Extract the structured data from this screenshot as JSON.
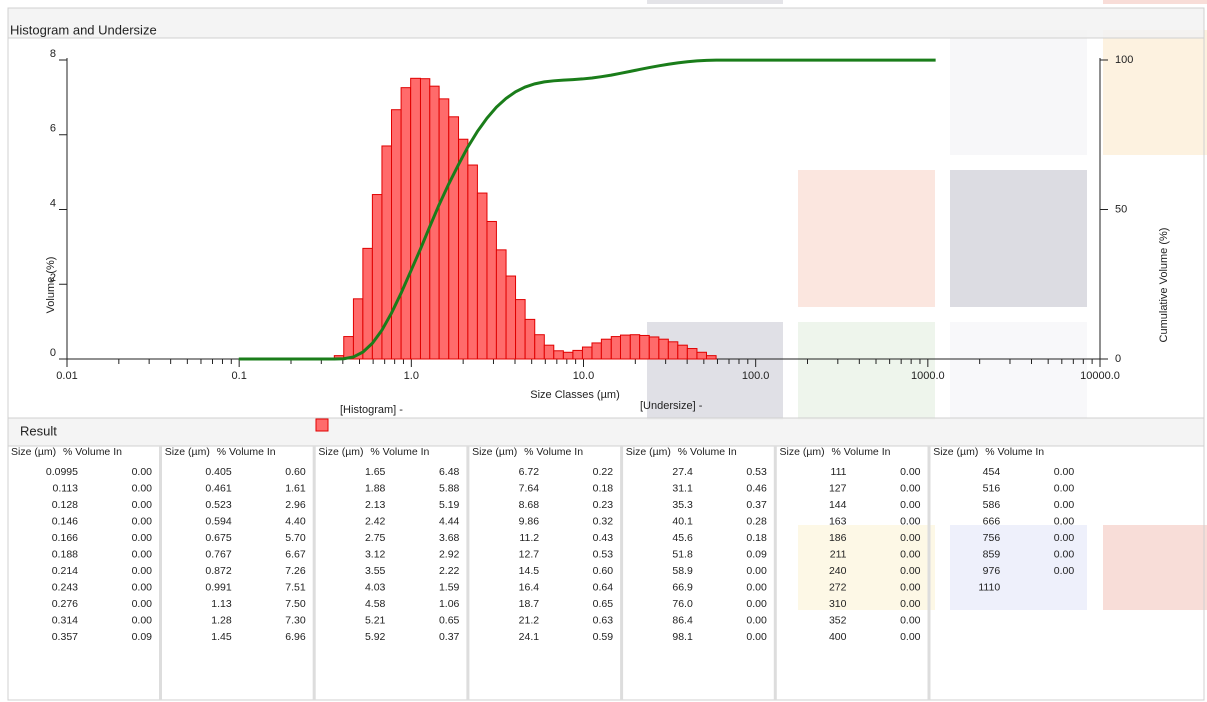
{
  "header": {
    "title": "Histogram and Undersize"
  },
  "chart_data": {
    "type": "histogram",
    "xscale": "log",
    "xlabel": "Size Classes (µm)",
    "ylabel": "Volume (%)",
    "y2label": "Cumulative Volume (%)",
    "xlim": [
      0.01,
      10000
    ],
    "xticks": [
      {
        "value": 0.01,
        "label": "0.01"
      },
      {
        "value": 0.1,
        "label": "0.1"
      },
      {
        "value": 1,
        "label": "1.0"
      },
      {
        "value": 10,
        "label": "10.0"
      },
      {
        "value": 100,
        "label": "100.0"
      },
      {
        "value": 1000,
        "label": "1000.0"
      },
      {
        "value": 10000,
        "label": "10000.0"
      }
    ],
    "ylim": [
      0,
      8
    ],
    "yticks": [
      0,
      2,
      4,
      6,
      8
    ],
    "y2lim": [
      0,
      100
    ],
    "y2ticks": [
      0,
      50,
      100
    ],
    "bins": [
      0.0995,
      0.113,
      0.128,
      0.146,
      0.166,
      0.188,
      0.214,
      0.243,
      0.276,
      0.314,
      0.357,
      0.405,
      0.461,
      0.523,
      0.594,
      0.675,
      0.767,
      0.872,
      0.991,
      1.13,
      1.28,
      1.45,
      1.65,
      1.88,
      2.13,
      2.42,
      2.75,
      3.12,
      3.55,
      4.03,
      4.58,
      5.21,
      5.92,
      6.72,
      7.64,
      8.68,
      9.86,
      11.2,
      12.7,
      14.5,
      16.4,
      18.7,
      21.2,
      24.1,
      27.4,
      31.1,
      35.3,
      40.1,
      45.6,
      51.8,
      58.9,
      66.9,
      76.0,
      86.4,
      98.1,
      111,
      127,
      144,
      163,
      186,
      211,
      240,
      272,
      310,
      352,
      400,
      454,
      516,
      586,
      666,
      756,
      859,
      976,
      1110
    ],
    "series": [
      {
        "name": "[Histogram] -",
        "color": "#ff6b6b",
        "values": [
          0,
          0,
          0,
          0,
          0,
          0,
          0,
          0,
          0,
          0,
          0.09,
          0.6,
          1.61,
          2.96,
          4.4,
          5.7,
          6.67,
          7.26,
          7.51,
          7.5,
          7.3,
          6.96,
          6.48,
          5.88,
          5.19,
          4.44,
          3.68,
          2.92,
          2.22,
          1.59,
          1.06,
          0.65,
          0.37,
          0.22,
          0.18,
          0.23,
          0.32,
          0.43,
          0.53,
          0.6,
          0.64,
          0.65,
          0.63,
          0.59,
          0.53,
          0.46,
          0.37,
          0.28,
          0.18,
          0.09,
          0,
          0,
          0,
          0,
          0,
          0,
          0,
          0,
          0,
          0,
          0,
          0,
          0,
          0,
          0,
          0,
          0,
          0,
          0,
          0,
          0,
          0,
          0
        ]
      },
      {
        "name": "[Undersize] -",
        "color": "#1a7d1a",
        "axis": "y2",
        "values": [
          0,
          0,
          0,
          0,
          0,
          0,
          0,
          0,
          0,
          0,
          0,
          0.09,
          0.69,
          2.3,
          5.26,
          9.66,
          15.36,
          22.03,
          29.29,
          36.8,
          44.3,
          51.6,
          58.56,
          65.04,
          70.92,
          76.11,
          80.55,
          84.23,
          87.15,
          89.37,
          90.96,
          92.02,
          92.67,
          93.04,
          93.26,
          93.44,
          93.67,
          93.99,
          94.42,
          94.95,
          95.55,
          96.19,
          96.84,
          97.47,
          98.06,
          98.59,
          99.05,
          99.42,
          99.7,
          99.88,
          99.97,
          99.97,
          99.97,
          99.97,
          99.97,
          99.97,
          99.97,
          99.97,
          99.97,
          99.97,
          99.97,
          99.97,
          99.97,
          99.97,
          99.97,
          99.97,
          99.97,
          99.97,
          99.97,
          99.97,
          99.97,
          99.97,
          99.97,
          99.97
        ]
      }
    ]
  },
  "result": {
    "title": "Result",
    "columns": [
      {
        "headers": [
          "Size (µm)",
          "% Volume In"
        ],
        "rows": [
          [
            "0.0995",
            "0.00"
          ],
          [
            "0.113",
            "0.00"
          ],
          [
            "0.128",
            "0.00"
          ],
          [
            "0.146",
            "0.00"
          ],
          [
            "0.166",
            "0.00"
          ],
          [
            "0.188",
            "0.00"
          ],
          [
            "0.214",
            "0.00"
          ],
          [
            "0.243",
            "0.00"
          ],
          [
            "0.276",
            "0.00"
          ],
          [
            "0.314",
            "0.00"
          ],
          [
            "0.357",
            "0.09"
          ]
        ]
      },
      {
        "headers": [
          "Size (µm)",
          "% Volume In"
        ],
        "rows": [
          [
            "0.405",
            "0.60"
          ],
          [
            "0.461",
            "1.61"
          ],
          [
            "0.523",
            "2.96"
          ],
          [
            "0.594",
            "4.40"
          ],
          [
            "0.675",
            "5.70"
          ],
          [
            "0.767",
            "6.67"
          ],
          [
            "0.872",
            "7.26"
          ],
          [
            "0.991",
            "7.51"
          ],
          [
            "1.13",
            "7.50"
          ],
          [
            "1.28",
            "7.30"
          ],
          [
            "1.45",
            "6.96"
          ]
        ]
      },
      {
        "headers": [
          "Size (µm)",
          "% Volume In"
        ],
        "rows": [
          [
            "1.65",
            "6.48"
          ],
          [
            "1.88",
            "5.88"
          ],
          [
            "2.13",
            "5.19"
          ],
          [
            "2.42",
            "4.44"
          ],
          [
            "2.75",
            "3.68"
          ],
          [
            "3.12",
            "2.92"
          ],
          [
            "3.55",
            "2.22"
          ],
          [
            "4.03",
            "1.59"
          ],
          [
            "4.58",
            "1.06"
          ],
          [
            "5.21",
            "0.65"
          ],
          [
            "5.92",
            "0.37"
          ]
        ]
      },
      {
        "headers": [
          "Size (µm)",
          "% Volume In"
        ],
        "rows": [
          [
            "6.72",
            "0.22"
          ],
          [
            "7.64",
            "0.18"
          ],
          [
            "8.68",
            "0.23"
          ],
          [
            "9.86",
            "0.32"
          ],
          [
            "11.2",
            "0.43"
          ],
          [
            "12.7",
            "0.53"
          ],
          [
            "14.5",
            "0.60"
          ],
          [
            "16.4",
            "0.64"
          ],
          [
            "18.7",
            "0.65"
          ],
          [
            "21.2",
            "0.63"
          ],
          [
            "24.1",
            "0.59"
          ]
        ]
      },
      {
        "headers": [
          "Size (µm)",
          "% Volume In"
        ],
        "rows": [
          [
            "27.4",
            "0.53"
          ],
          [
            "31.1",
            "0.46"
          ],
          [
            "35.3",
            "0.37"
          ],
          [
            "40.1",
            "0.28"
          ],
          [
            "45.6",
            "0.18"
          ],
          [
            "51.8",
            "0.09"
          ],
          [
            "58.9",
            "0.00"
          ],
          [
            "66.9",
            "0.00"
          ],
          [
            "76.0",
            "0.00"
          ],
          [
            "86.4",
            "0.00"
          ],
          [
            "98.1",
            "0.00"
          ]
        ]
      },
      {
        "headers": [
          "Size (µm)",
          "% Volume In"
        ],
        "rows": [
          [
            "111",
            "0.00"
          ],
          [
            "127",
            "0.00"
          ],
          [
            "144",
            "0.00"
          ],
          [
            "163",
            "0.00"
          ],
          [
            "186",
            "0.00"
          ],
          [
            "211",
            "0.00"
          ],
          [
            "240",
            "0.00"
          ],
          [
            "272",
            "0.00"
          ],
          [
            "310",
            "0.00"
          ],
          [
            "352",
            "0.00"
          ],
          [
            "400",
            "0.00"
          ]
        ]
      },
      {
        "headers": [
          "Size (µm)",
          "% Volume In"
        ],
        "rows": [
          [
            "454",
            "0.00"
          ],
          [
            "516",
            "0.00"
          ],
          [
            "586",
            "0.00"
          ],
          [
            "666",
            "0.00"
          ],
          [
            "756",
            "0.00"
          ],
          [
            "859",
            "0.00"
          ],
          [
            "976",
            "0.00"
          ],
          [
            "1110"
          ]
        ]
      }
    ]
  }
}
